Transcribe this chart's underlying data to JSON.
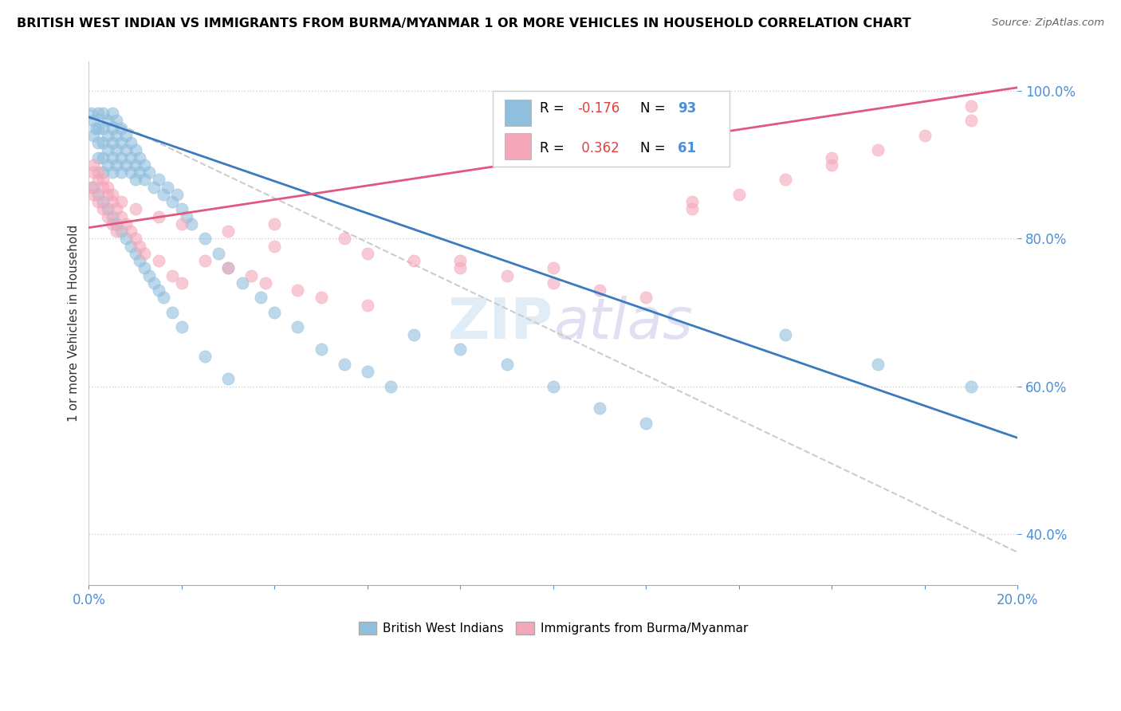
{
  "title": "BRITISH WEST INDIAN VS IMMIGRANTS FROM BURMA/MYANMAR 1 OR MORE VEHICLES IN HOUSEHOLD CORRELATION CHART",
  "source": "Source: ZipAtlas.com",
  "ylabel": "1 or more Vehicles in Household",
  "legend_label1": "British West Indians",
  "legend_label2": "Immigrants from Burma/Myanmar",
  "R1": -0.176,
  "N1": 93,
  "R2": 0.362,
  "N2": 61,
  "color1": "#90bedd",
  "color2": "#f4a7b9",
  "line_color1": "#3a7abf",
  "line_color2": "#e05880",
  "trendline_color": "#cccccc",
  "xlim": [
    0.0,
    0.2
  ],
  "ylim": [
    0.33,
    1.04
  ],
  "yticks": [
    0.4,
    0.6,
    0.8,
    1.0
  ],
  "blue_x": [
    0.0005,
    0.001,
    0.001,
    0.0015,
    0.002,
    0.002,
    0.002,
    0.002,
    0.003,
    0.003,
    0.003,
    0.003,
    0.003,
    0.004,
    0.004,
    0.004,
    0.004,
    0.005,
    0.005,
    0.005,
    0.005,
    0.005,
    0.006,
    0.006,
    0.006,
    0.006,
    0.007,
    0.007,
    0.007,
    0.007,
    0.008,
    0.008,
    0.008,
    0.009,
    0.009,
    0.009,
    0.01,
    0.01,
    0.01,
    0.011,
    0.011,
    0.012,
    0.012,
    0.013,
    0.014,
    0.015,
    0.016,
    0.017,
    0.018,
    0.019,
    0.02,
    0.021,
    0.022,
    0.025,
    0.028,
    0.03,
    0.033,
    0.037,
    0.04,
    0.045,
    0.05,
    0.055,
    0.06,
    0.065,
    0.07,
    0.08,
    0.09,
    0.1,
    0.11,
    0.12,
    0.15,
    0.17,
    0.19,
    0.001,
    0.002,
    0.003,
    0.004,
    0.005,
    0.006,
    0.007,
    0.008,
    0.009,
    0.01,
    0.011,
    0.012,
    0.013,
    0.014,
    0.015,
    0.016,
    0.018,
    0.02,
    0.025,
    0.03
  ],
  "blue_y": [
    0.97,
    0.96,
    0.94,
    0.95,
    0.97,
    0.95,
    0.93,
    0.91,
    0.97,
    0.95,
    0.93,
    0.91,
    0.89,
    0.96,
    0.94,
    0.92,
    0.9,
    0.97,
    0.95,
    0.93,
    0.91,
    0.89,
    0.96,
    0.94,
    0.92,
    0.9,
    0.95,
    0.93,
    0.91,
    0.89,
    0.94,
    0.92,
    0.9,
    0.93,
    0.91,
    0.89,
    0.92,
    0.9,
    0.88,
    0.91,
    0.89,
    0.9,
    0.88,
    0.89,
    0.87,
    0.88,
    0.86,
    0.87,
    0.85,
    0.86,
    0.84,
    0.83,
    0.82,
    0.8,
    0.78,
    0.76,
    0.74,
    0.72,
    0.7,
    0.68,
    0.65,
    0.63,
    0.62,
    0.6,
    0.67,
    0.65,
    0.63,
    0.6,
    0.57,
    0.55,
    0.67,
    0.63,
    0.6,
    0.87,
    0.86,
    0.85,
    0.84,
    0.83,
    0.82,
    0.81,
    0.8,
    0.79,
    0.78,
    0.77,
    0.76,
    0.75,
    0.74,
    0.73,
    0.72,
    0.7,
    0.68,
    0.64,
    0.61
  ],
  "pink_x": [
    0.0005,
    0.001,
    0.001,
    0.002,
    0.002,
    0.003,
    0.003,
    0.004,
    0.004,
    0.005,
    0.005,
    0.006,
    0.006,
    0.007,
    0.008,
    0.009,
    0.01,
    0.011,
    0.012,
    0.015,
    0.018,
    0.02,
    0.025,
    0.03,
    0.035,
    0.038,
    0.04,
    0.045,
    0.05,
    0.055,
    0.06,
    0.07,
    0.08,
    0.09,
    0.1,
    0.11,
    0.12,
    0.13,
    0.14,
    0.15,
    0.16,
    0.17,
    0.18,
    0.19,
    0.001,
    0.002,
    0.003,
    0.004,
    0.005,
    0.007,
    0.01,
    0.015,
    0.02,
    0.03,
    0.04,
    0.06,
    0.08,
    0.1,
    0.13,
    0.16,
    0.19
  ],
  "pink_y": [
    0.87,
    0.89,
    0.86,
    0.88,
    0.85,
    0.87,
    0.84,
    0.86,
    0.83,
    0.85,
    0.82,
    0.84,
    0.81,
    0.83,
    0.82,
    0.81,
    0.8,
    0.79,
    0.78,
    0.77,
    0.75,
    0.74,
    0.77,
    0.76,
    0.75,
    0.74,
    0.82,
    0.73,
    0.72,
    0.8,
    0.71,
    0.77,
    0.76,
    0.75,
    0.74,
    0.73,
    0.72,
    0.84,
    0.86,
    0.88,
    0.9,
    0.92,
    0.94,
    0.96,
    0.9,
    0.89,
    0.88,
    0.87,
    0.86,
    0.85,
    0.84,
    0.83,
    0.82,
    0.81,
    0.79,
    0.78,
    0.77,
    0.76,
    0.85,
    0.91,
    0.98
  ],
  "blue_line_x": [
    0.0,
    0.2
  ],
  "blue_line_y": [
    0.965,
    0.53
  ],
  "pink_line_x": [
    0.0,
    0.2
  ],
  "pink_line_y": [
    0.815,
    1.005
  ],
  "trend_line_x": [
    0.0,
    0.2
  ],
  "trend_line_y": [
    0.975,
    0.375
  ]
}
